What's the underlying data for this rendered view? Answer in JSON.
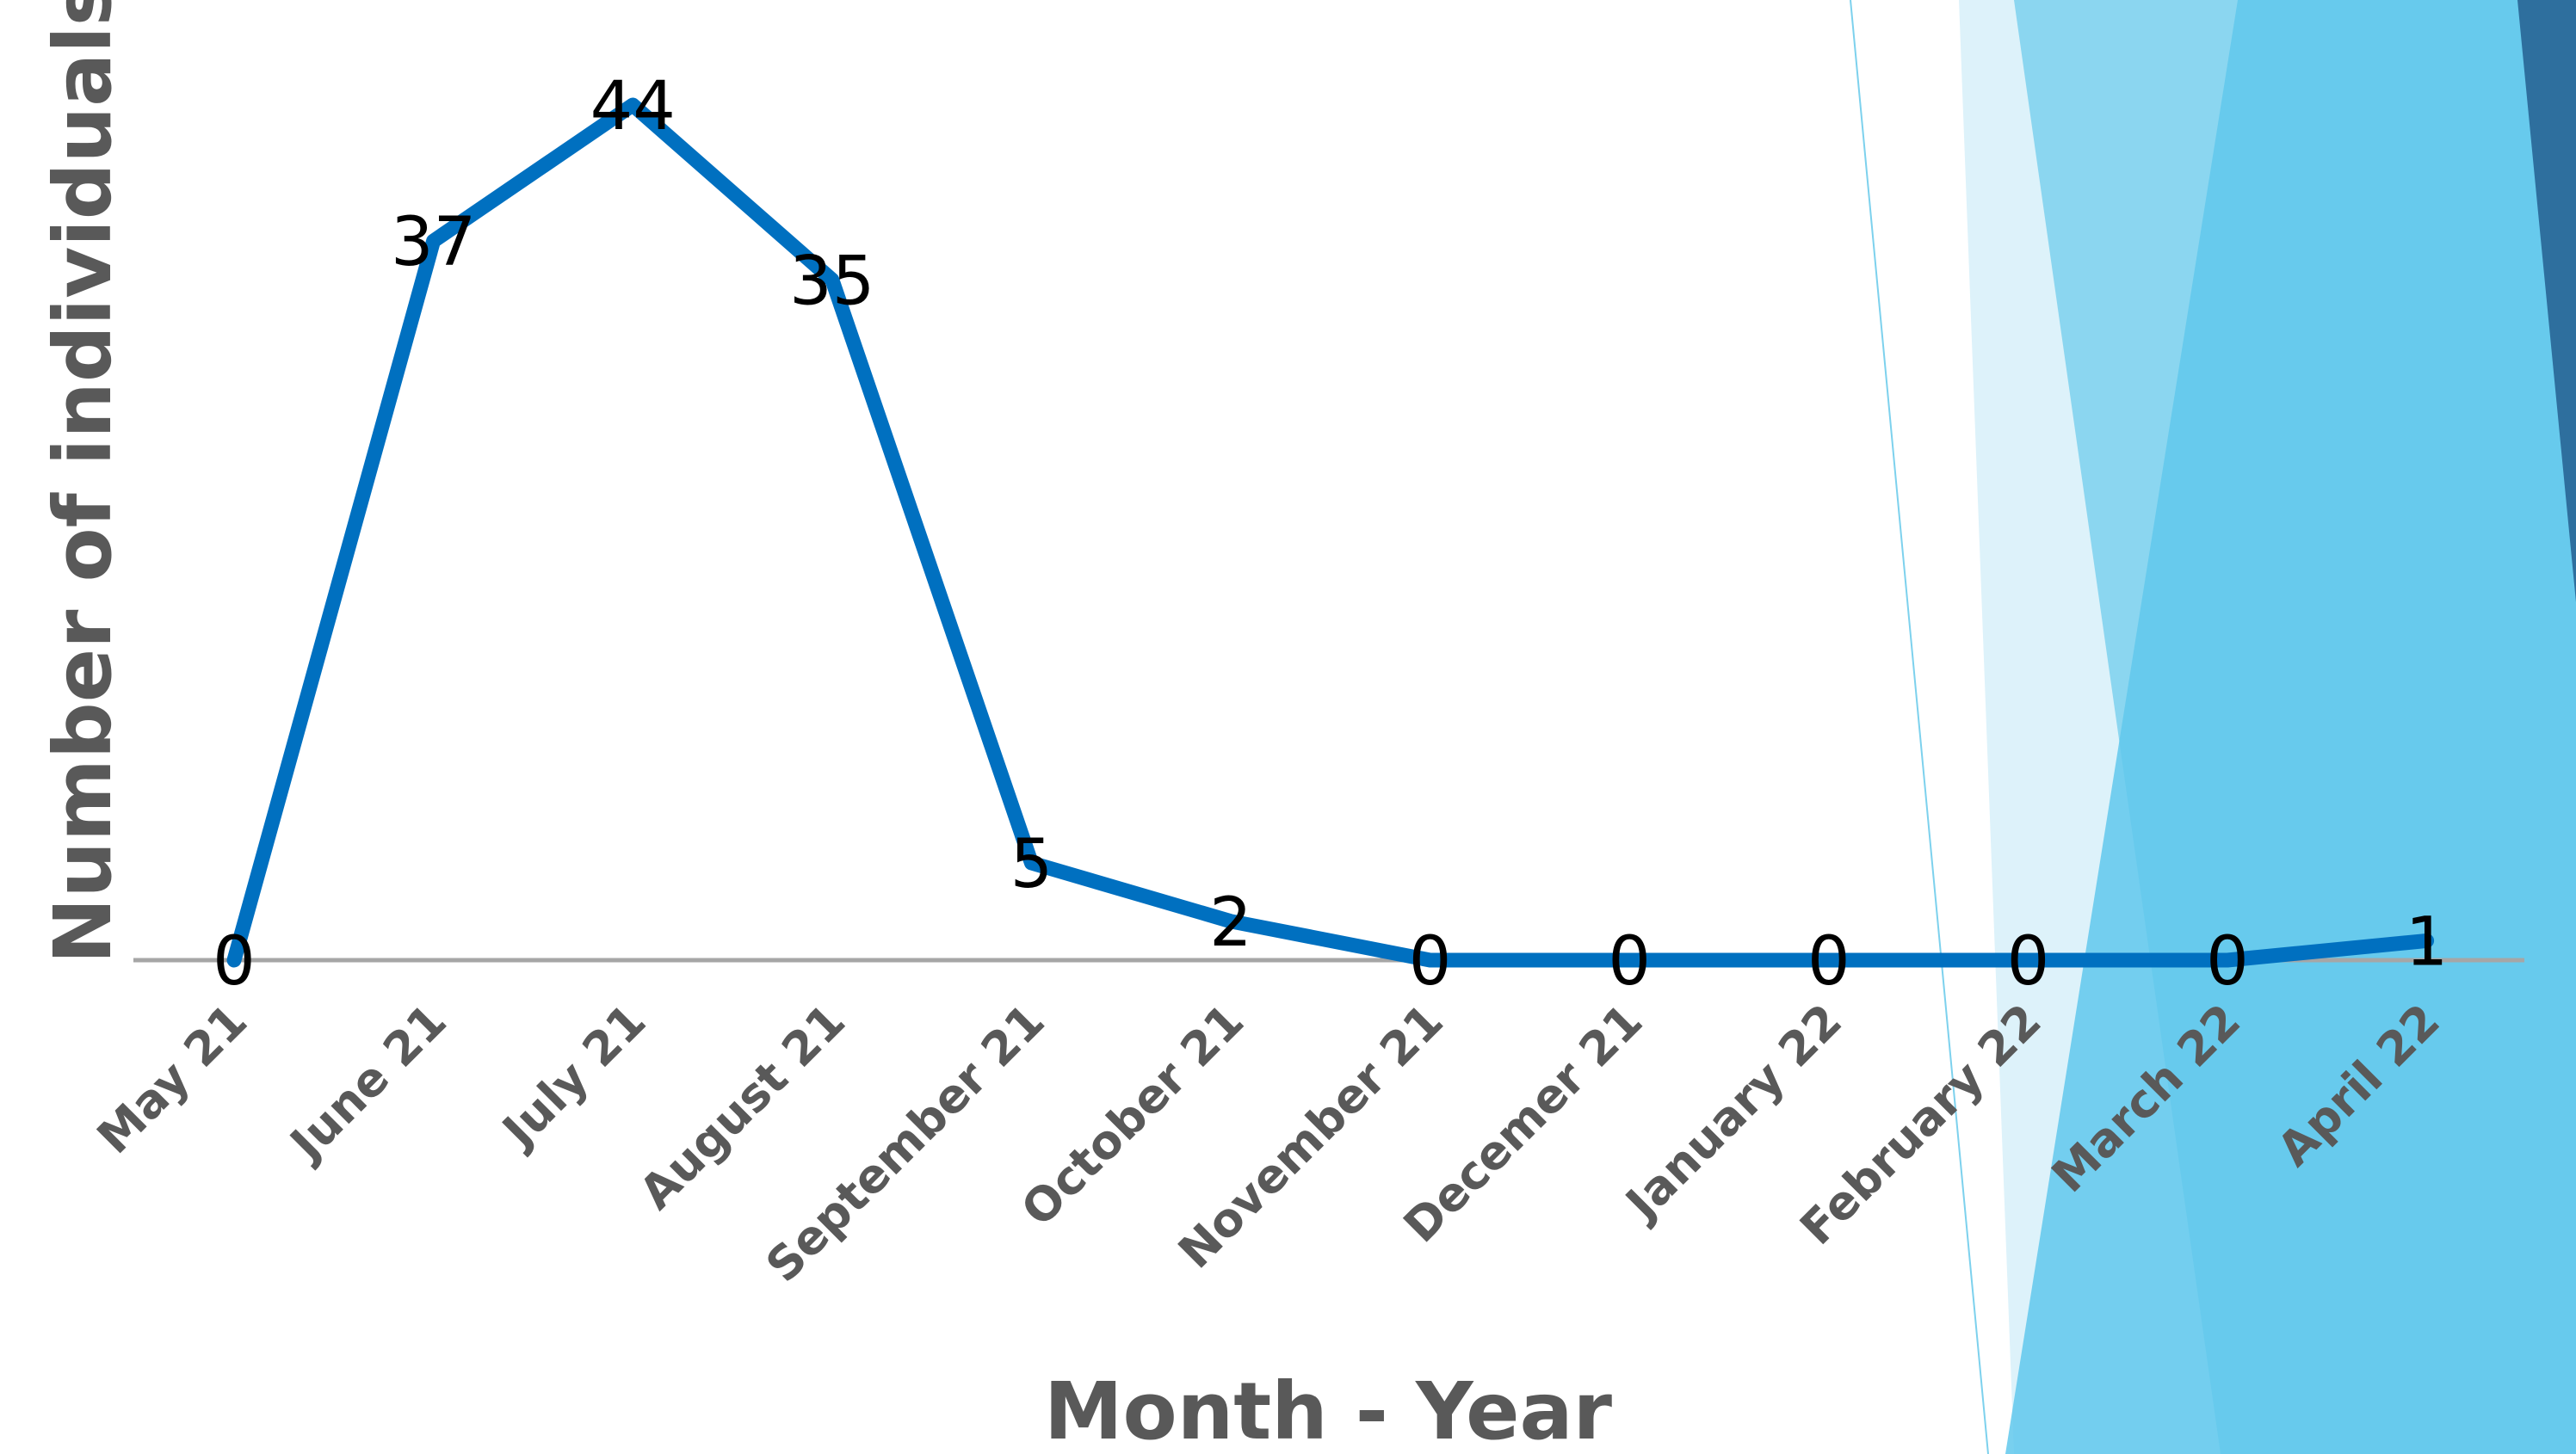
{
  "colors": {
    "series": "#0070C0",
    "baseline": "#A6A6A6",
    "text": "#595959",
    "data_label": "#000000",
    "accent_light": "#DDF2FA",
    "accent_mid": "#7DD1ED",
    "accent": "#60C8EC",
    "accent_dark": "#2E6F9E"
  },
  "chart_data": {
    "type": "line",
    "categories": [
      "May 21",
      "June 21",
      "July 21",
      "August 21",
      "September 21",
      "October 21",
      "November 21",
      "Decemer 21",
      "January 22",
      "February 22",
      "March 22",
      "April 22"
    ],
    "series": [
      {
        "values": [
          0,
          37,
          44,
          35,
          5,
          2,
          0,
          0,
          0,
          0,
          0,
          1
        ]
      }
    ],
    "data_labels": [
      "0",
      "37",
      "44",
      "35",
      "5",
      "2",
      "0",
      "0",
      "0",
      "0",
      "0",
      "1"
    ],
    "xlabel": "Month - Year",
    "ylabel": "Number of individuals",
    "ylim": [
      0,
      44
    ],
    "grid": false,
    "legend": "none"
  }
}
